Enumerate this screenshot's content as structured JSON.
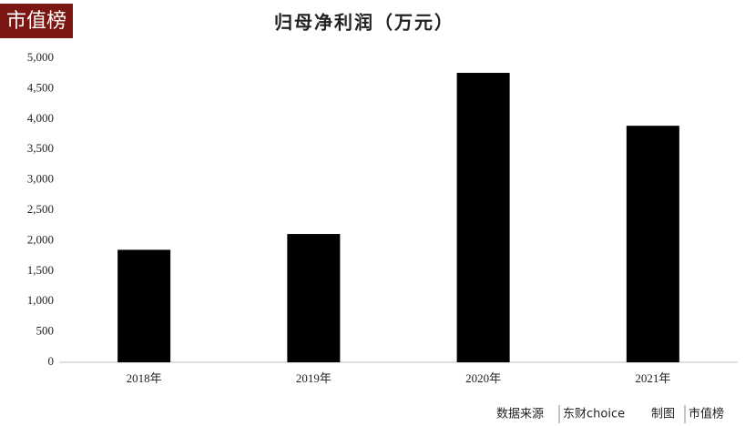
{
  "logo": "市值榜",
  "source": {
    "label": "数据来源",
    "provider": "东财choice",
    "made_label": "制图",
    "maker": "市值榜"
  },
  "chart_data": {
    "type": "bar",
    "title": "归母净利润（万元）",
    "categories": [
      "2018年",
      "2019年",
      "2020年",
      "2021年"
    ],
    "values": [
      1850,
      2110,
      4760,
      3890
    ],
    "color": "#000000",
    "ylim": [
      0,
      5000
    ],
    "yticks": [
      0,
      500,
      {
        "value": 1000,
        "label": "1,000"
      },
      {
        "value": 1500,
        "label": "1,500"
      },
      {
        "value": 2000,
        "label": "2,000"
      },
      {
        "value": 2500,
        "label": "2,500"
      },
      {
        "value": 3000,
        "label": "3,000"
      },
      {
        "value": 3500,
        "label": "3,500"
      },
      {
        "value": 4000,
        "label": "4,000"
      },
      {
        "value": 4500,
        "label": "4,500"
      },
      {
        "value": 5000,
        "label": "5,000"
      }
    ],
    "grid": false
  }
}
